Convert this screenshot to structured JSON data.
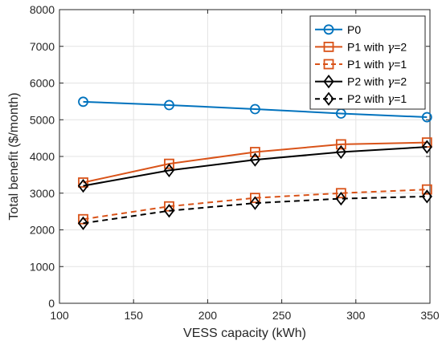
{
  "chart_data": {
    "type": "line",
    "xlabel": "VESS capacity (kWh)",
    "ylabel": "Total benefit ($/month)",
    "xlim": [
      100,
      350
    ],
    "ylim": [
      0,
      8000
    ],
    "xticks": [
      100,
      150,
      200,
      250,
      300,
      350
    ],
    "yticks": [
      0,
      1000,
      2000,
      3000,
      4000,
      5000,
      6000,
      7000,
      8000
    ],
    "grid": true,
    "legend_position": "top-right",
    "x": [
      116,
      174,
      232,
      290,
      348
    ],
    "series": [
      {
        "name_parts": [
          "P0",
          "",
          ""
        ],
        "values": [
          5490,
          5400,
          5290,
          5170,
          5070
        ],
        "color": "#0072BD",
        "marker": "circle",
        "dash": false
      },
      {
        "name_parts": [
          "P1 with ",
          "γ",
          "=2"
        ],
        "values": [
          3290,
          3800,
          4120,
          4330,
          4380
        ],
        "color": "#D95319",
        "marker": "square",
        "dash": false
      },
      {
        "name_parts": [
          "P1 with ",
          "γ",
          "=1"
        ],
        "values": [
          2290,
          2640,
          2870,
          3000,
          3100
        ],
        "color": "#D95319",
        "marker": "square",
        "dash": true
      },
      {
        "name_parts": [
          "P2 with ",
          "γ",
          "=2"
        ],
        "values": [
          3200,
          3620,
          3910,
          4120,
          4260
        ],
        "color": "#000000",
        "marker": "diamond",
        "dash": false
      },
      {
        "name_parts": [
          "P2 with ",
          "γ",
          "=1"
        ],
        "values": [
          2180,
          2520,
          2730,
          2850,
          2910
        ],
        "color": "#000000",
        "marker": "diamond",
        "dash": true
      }
    ]
  }
}
